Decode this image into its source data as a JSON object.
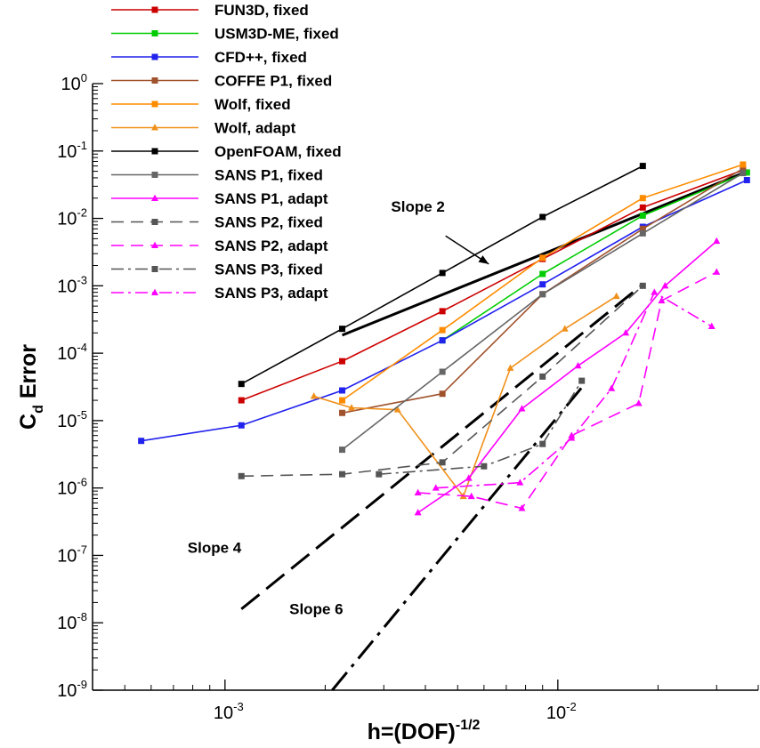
{
  "chart_data": {
    "type": "line",
    "x_scale": "log",
    "y_scale": "log",
    "xlim": [
      0.0004,
      0.04
    ],
    "ylim": [
      1e-09,
      1
    ],
    "x_ticks": [
      {
        "value": 0.001,
        "base": "10",
        "exp": "-3"
      },
      {
        "value": 0.01,
        "base": "10",
        "exp": "-2"
      }
    ],
    "y_ticks": [
      {
        "value": 1,
        "base": "10",
        "exp": "0"
      },
      {
        "value": 0.1,
        "base": "10",
        "exp": "-1"
      },
      {
        "value": 0.01,
        "base": "10",
        "exp": "-2"
      },
      {
        "value": 0.001,
        "base": "10",
        "exp": "-3"
      },
      {
        "value": 0.0001,
        "base": "10",
        "exp": "-4"
      },
      {
        "value": 1e-05,
        "base": "10",
        "exp": "-5"
      },
      {
        "value": 1e-06,
        "base": "10",
        "exp": "-6"
      },
      {
        "value": 1e-07,
        "base": "10",
        "exp": "-7"
      },
      {
        "value": 1e-08,
        "base": "10",
        "exp": "-8"
      },
      {
        "value": 1e-09,
        "base": "10",
        "exp": "-9"
      }
    ],
    "xlabel": {
      "main": "h=(DOF)",
      "sup": "-1/2"
    },
    "ylabel": {
      "main": "C",
      "sub": "d",
      "rest": " Error"
    },
    "legend_position": "top-center",
    "grid": false,
    "series": [
      {
        "name": "FUN3D, fixed",
        "color": "#cc0000",
        "dash": "",
        "marker": "square",
        "points": [
          [
            0.00112,
            2e-05
          ],
          [
            0.00225,
            7.6e-05
          ],
          [
            0.0045,
            0.00042
          ],
          [
            0.009,
            0.0025
          ],
          [
            0.018,
            0.0145
          ],
          [
            0.036,
            0.052
          ]
        ]
      },
      {
        "name": "USM3D-ME, fixed",
        "color": "#00cc00",
        "dash": "",
        "marker": "square",
        "points": [
          [
            0.0045,
            0.000155
          ],
          [
            0.009,
            0.0015
          ],
          [
            0.018,
            0.011
          ],
          [
            0.037,
            0.048
          ]
        ]
      },
      {
        "name": "CFD++, fixed",
        "color": "#2222ee",
        "dash": "",
        "marker": "square",
        "points": [
          [
            0.00056,
            5e-06
          ],
          [
            0.00112,
            8.5e-06
          ],
          [
            0.00225,
            2.8e-05
          ],
          [
            0.0045,
            0.000155
          ],
          [
            0.009,
            0.00105
          ],
          [
            0.018,
            0.0075
          ],
          [
            0.037,
            0.037
          ]
        ]
      },
      {
        "name": "COFFE P1, fixed",
        "color": "#a0522d",
        "dash": "",
        "marker": "square",
        "points": [
          [
            0.00225,
            1.3e-05
          ],
          [
            0.0045,
            2.5e-05
          ],
          [
            0.009,
            0.00075
          ],
          [
            0.018,
            0.007
          ],
          [
            0.036,
            0.055
          ]
        ]
      },
      {
        "name": "Wolf, fixed",
        "color": "#ff8c00",
        "dash": "",
        "marker": "square",
        "points": [
          [
            0.00225,
            2e-05
          ],
          [
            0.0045,
            0.00022
          ],
          [
            0.009,
            0.0026
          ],
          [
            0.018,
            0.02
          ],
          [
            0.036,
            0.063
          ]
        ]
      },
      {
        "name": "Wolf, adapt",
        "color": "#f0901a",
        "dash": "",
        "marker": "triangle",
        "points": [
          [
            0.00185,
            2.3e-05
          ],
          [
            0.0024,
            1.55e-05
          ],
          [
            0.0033,
            1.45e-05
          ],
          [
            0.0052,
            7.5e-07
          ],
          [
            0.0072,
            6e-05
          ],
          [
            0.0105,
            0.00023
          ],
          [
            0.015,
            0.0007
          ]
        ]
      },
      {
        "name": "OpenFOAM, fixed",
        "color": "#000000",
        "dash": "",
        "marker": "square",
        "points": [
          [
            0.00112,
            3.5e-05
          ],
          [
            0.00225,
            0.00023
          ],
          [
            0.0045,
            0.00155
          ],
          [
            0.009,
            0.0105
          ],
          [
            0.018,
            0.06
          ]
        ]
      },
      {
        "name": "SANS P1, fixed",
        "color": "#666666",
        "dash": "",
        "marker": "square",
        "points": [
          [
            0.00225,
            3.7e-06
          ],
          [
            0.0045,
            5.3e-05
          ],
          [
            0.009,
            0.00075
          ],
          [
            0.018,
            0.006
          ],
          [
            0.036,
            0.047
          ]
        ]
      },
      {
        "name": "SANS P1, adapt",
        "color": "#ff00ff",
        "dash": "",
        "marker": "triangle",
        "points": [
          [
            0.0038,
            4.3e-07
          ],
          [
            0.0054,
            1.4e-06
          ],
          [
            0.0078,
            1.5e-05
          ],
          [
            0.0115,
            6.5e-05
          ],
          [
            0.016,
            0.0002
          ],
          [
            0.021,
            0.001
          ],
          [
            0.03,
            0.0046
          ]
        ]
      },
      {
        "name": "SANS P2, fixed",
        "color": "#555555",
        "dash": "14,8",
        "marker": "square",
        "points": [
          [
            0.00112,
            1.5e-06
          ],
          [
            0.00225,
            1.6e-06
          ],
          [
            0.0045,
            2.4e-06
          ],
          [
            0.009,
            4.5e-05
          ],
          [
            0.018,
            0.001
          ]
        ]
      },
      {
        "name": "SANS P2, adapt",
        "color": "#ff00ff",
        "dash": "14,8",
        "marker": "triangle",
        "points": [
          [
            0.0038,
            8.5e-07
          ],
          [
            0.0055,
            7.5e-07
          ],
          [
            0.0078,
            5e-07
          ],
          [
            0.011,
            6e-06
          ],
          [
            0.0175,
            1.8e-05
          ],
          [
            0.0205,
            0.0006
          ],
          [
            0.03,
            0.0016
          ]
        ]
      },
      {
        "name": "SANS P3, fixed",
        "color": "#555555",
        "dash": "14,5,3,5",
        "marker": "square",
        "points": [
          [
            0.0029,
            1.6e-06
          ],
          [
            0.006,
            2.1e-06
          ],
          [
            0.009,
            4.5e-06
          ],
          [
            0.0118,
            3.9e-05
          ]
        ]
      },
      {
        "name": "SANS P3, adapt",
        "color": "#ff00ff",
        "dash": "14,5,3,5",
        "marker": "triangle",
        "points": [
          [
            0.0043,
            1e-06
          ],
          [
            0.0077,
            1.2e-06
          ],
          [
            0.011,
            5.5e-06
          ],
          [
            0.0145,
            3e-05
          ],
          [
            0.0195,
            0.0008
          ],
          [
            0.029,
            0.00025
          ]
        ]
      }
    ],
    "reference_lines": [
      {
        "name": "Slope 2",
        "color": "#000000",
        "dash": "",
        "width": 3,
        "points": [
          [
            0.00225,
            0.000185
          ],
          [
            0.036,
            0.047
          ]
        ]
      },
      {
        "name": "Slope 4",
        "color": "#000000",
        "dash": "26,10",
        "width": 3,
        "points": [
          [
            0.00112,
            1.6e-08
          ],
          [
            0.018,
            0.00105
          ]
        ]
      },
      {
        "name": "Slope 6",
        "color": "#000000",
        "dash": "26,8,4,8",
        "width": 3,
        "points": [
          [
            0.0021,
            1e-09
          ],
          [
            0.0118,
            3.1e-05
          ]
        ]
      }
    ],
    "annotations": [
      {
        "text": "Slope 2",
        "x": 0.0038,
        "y": 0.0125
      },
      {
        "text": "Slope 4",
        "x": 0.00093,
        "y": 1.1e-07
      },
      {
        "text": "Slope 6",
        "x": 0.00188,
        "y": 1.35e-08
      }
    ]
  }
}
